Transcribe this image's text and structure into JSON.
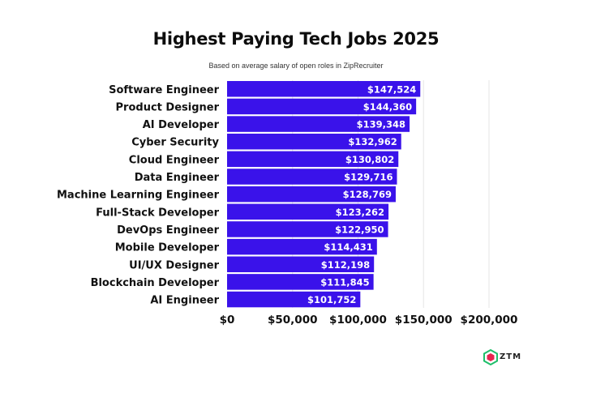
{
  "chart_data": {
    "type": "bar",
    "orientation": "horizontal",
    "title": "Highest Paying Tech Jobs 2025",
    "subtitle": "Based on average salary of open roles in ZipRecruiter",
    "xlabel": "",
    "ylabel": "",
    "xlim": [
      0,
      200000
    ],
    "x_ticks": [
      0,
      50000,
      100000,
      150000,
      200000
    ],
    "x_tick_labels": [
      "$0",
      "$50,000",
      "$100,000",
      "$150,000",
      "$200,000"
    ],
    "grid": "vertical",
    "bar_color": "#3a12ea",
    "categories": [
      "Software Engineer",
      "Product Designer",
      "AI Developer",
      "Cyber Security",
      "Cloud Engineer",
      "Data Engineer",
      "Machine Learning Engineer",
      "Full-Stack Developer",
      "DevOps Engineer",
      "Mobile Developer",
      "UI/UX Designer",
      "Blockchain Developer",
      "AI Engineer"
    ],
    "values": [
      147524,
      144360,
      139348,
      132962,
      130802,
      129716,
      128769,
      123262,
      122950,
      114431,
      112198,
      111845,
      101752
    ],
    "value_labels": [
      "$147,524",
      "$144,360",
      "$139,348",
      "$132,962",
      "$130,802",
      "$129,716",
      "$128,769",
      "$123,262",
      "$122,950",
      "$114,431",
      "$112,198",
      "$111,845",
      "$101,752"
    ]
  },
  "logo": {
    "text": "ZTM",
    "colors": [
      "#e8244f",
      "#1fbf6a"
    ]
  }
}
